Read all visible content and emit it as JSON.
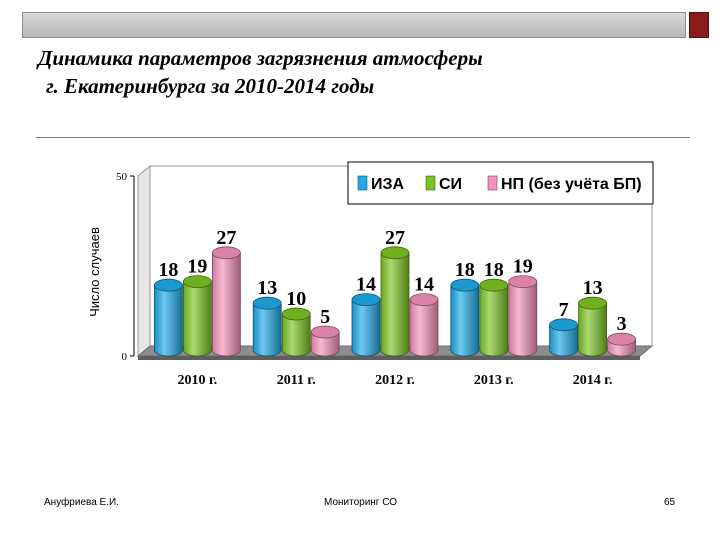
{
  "slide": {
    "title_line1": "Динамика параметров загрязнения атмосферы",
    "title_line2": "г. Екатеринбурга за 2010-2014 годы",
    "footer_author": "Ануфриева Е.И.",
    "footer_center": "Мониторинг СО",
    "footer_page": "65"
  },
  "colors": {
    "accent_bar": "#8b1a1a",
    "series": [
      "#1fa9e6",
      "#7cc424",
      "#f391b9"
    ]
  },
  "chart_data": {
    "type": "bar",
    "style": "3d-cylinder",
    "categories": [
      "2010 г.",
      "2011 г.",
      "2012 г.",
      "2013 г.",
      "2014 г."
    ],
    "series": [
      {
        "name": "ИЗА",
        "values": [
          18,
          13,
          14,
          18,
          7
        ]
      },
      {
        "name": "СИ",
        "values": [
          19,
          10,
          27,
          18,
          13
        ]
      },
      {
        "name": "НП (без учёта БП)",
        "values": [
          27,
          5,
          14,
          19,
          3
        ]
      }
    ],
    "ylabel": "Число случаев",
    "xlabel": "",
    "ylim": [
      0,
      50
    ],
    "yticks": [
      "0",
      "50"
    ],
    "grid": false,
    "legend_position": "top-right",
    "data_labels": true
  }
}
